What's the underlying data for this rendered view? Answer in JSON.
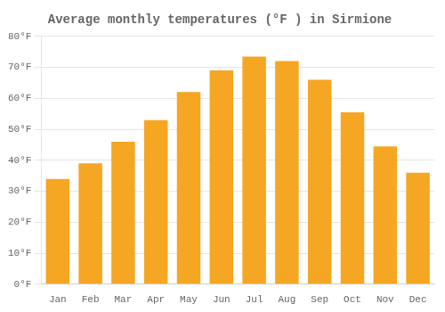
{
  "chart_data": {
    "type": "bar",
    "title": "Average monthly temperatures (°F ) in Sirmione",
    "categories": [
      "Jan",
      "Feb",
      "Mar",
      "Apr",
      "May",
      "Jun",
      "Jul",
      "Aug",
      "Sep",
      "Oct",
      "Nov",
      "Dec"
    ],
    "values": [
      34,
      39,
      46,
      53,
      62,
      69,
      73.5,
      72,
      66,
      55.5,
      44.5,
      36
    ],
    "color": "#F5A623",
    "ylim": [
      0,
      80
    ],
    "yticks": [
      {
        "value": 0,
        "label": "0°F"
      },
      {
        "value": 10,
        "label": "10°F"
      },
      {
        "value": 20,
        "label": "20°F"
      },
      {
        "value": 30,
        "label": "30°F"
      },
      {
        "value": 40,
        "label": "40°F"
      },
      {
        "value": 50,
        "label": "50°F"
      },
      {
        "value": 60,
        "label": "60°F"
      },
      {
        "value": 70,
        "label": "70°F"
      },
      {
        "value": 80,
        "label": "80°F"
      }
    ],
    "grid": true
  }
}
